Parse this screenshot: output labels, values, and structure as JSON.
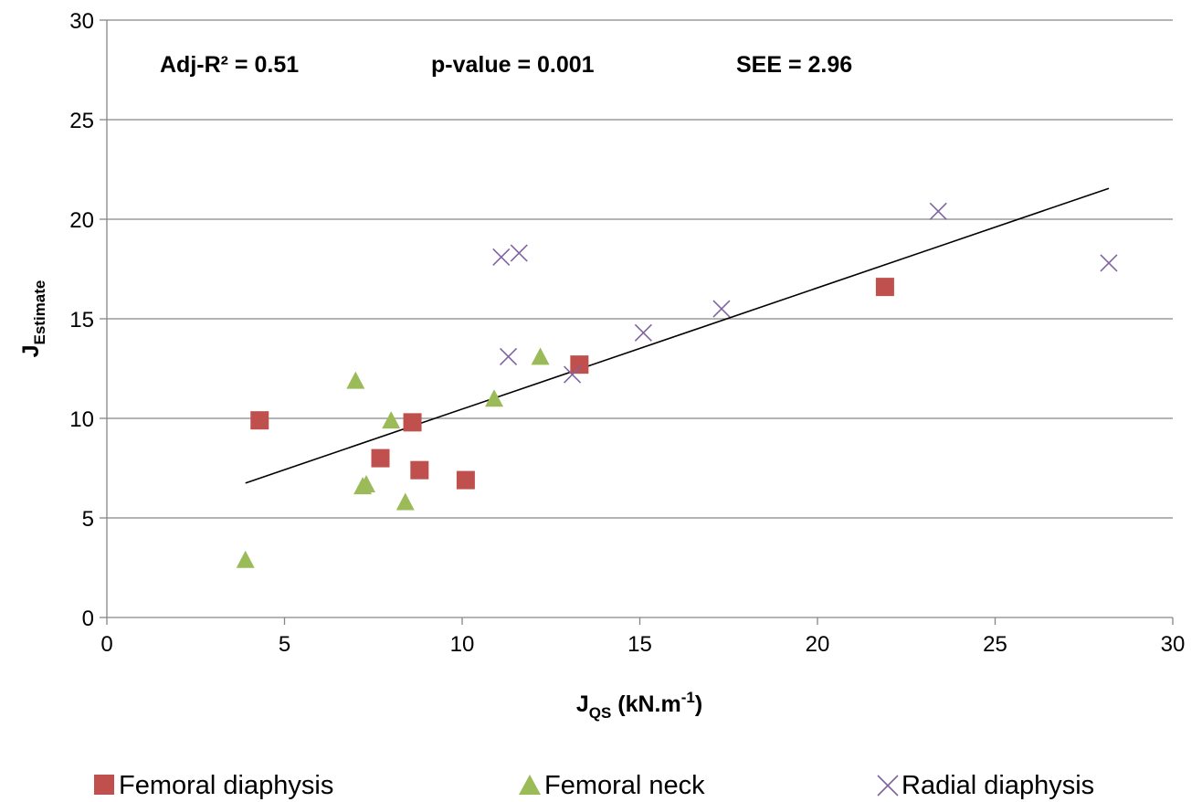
{
  "chart_data": {
    "type": "scatter",
    "xlabel": {
      "main": "J",
      "sub": "QS",
      "rest": " (kN.m",
      "sup": "-1",
      "end": ")"
    },
    "ylabel": {
      "main": "J",
      "sub": "Estimate"
    },
    "xlim": [
      0,
      30
    ],
    "ylim": [
      0,
      30
    ],
    "x_ticks": [
      0,
      5,
      10,
      15,
      20,
      25,
      30
    ],
    "y_ticks": [
      0,
      5,
      10,
      15,
      20,
      25,
      30
    ],
    "grid": "horizontal",
    "legend_position": "bottom",
    "annotations": [
      {
        "text": "Adj-R² = 0.51"
      },
      {
        "text": "p-value = 0.001"
      },
      {
        "text": "SEE = 2.96"
      }
    ],
    "trendline": {
      "x": [
        3.9,
        28.2
      ],
      "y": [
        6.75,
        21.55
      ],
      "color": "#000000"
    },
    "series": [
      {
        "name": "Femoral diaphysis",
        "marker": "square",
        "color": "#c0504d",
        "points": [
          {
            "x": 4.3,
            "y": 9.9
          },
          {
            "x": 7.7,
            "y": 8.0
          },
          {
            "x": 8.6,
            "y": 9.8
          },
          {
            "x": 8.8,
            "y": 7.4
          },
          {
            "x": 10.1,
            "y": 6.9
          },
          {
            "x": 13.3,
            "y": 12.7
          },
          {
            "x": 21.9,
            "y": 16.6
          }
        ]
      },
      {
        "name": "Femoral neck",
        "marker": "triangle",
        "color": "#9bbb59",
        "points": [
          {
            "x": 3.9,
            "y": 2.9
          },
          {
            "x": 7.0,
            "y": 11.9
          },
          {
            "x": 7.2,
            "y": 6.6
          },
          {
            "x": 7.3,
            "y": 6.7
          },
          {
            "x": 8.0,
            "y": 9.9
          },
          {
            "x": 8.4,
            "y": 5.8
          },
          {
            "x": 10.9,
            "y": 11.0
          },
          {
            "x": 12.2,
            "y": 13.1
          }
        ]
      },
      {
        "name": "Radial diaphysis",
        "marker": "x",
        "color": "#8064a2",
        "points": [
          {
            "x": 11.1,
            "y": 18.1
          },
          {
            "x": 11.3,
            "y": 13.1
          },
          {
            "x": 11.6,
            "y": 18.3
          },
          {
            "x": 13.1,
            "y": 12.2
          },
          {
            "x": 15.1,
            "y": 14.3
          },
          {
            "x": 17.3,
            "y": 15.5
          },
          {
            "x": 23.4,
            "y": 20.4
          },
          {
            "x": 28.2,
            "y": 17.8
          }
        ]
      }
    ]
  }
}
